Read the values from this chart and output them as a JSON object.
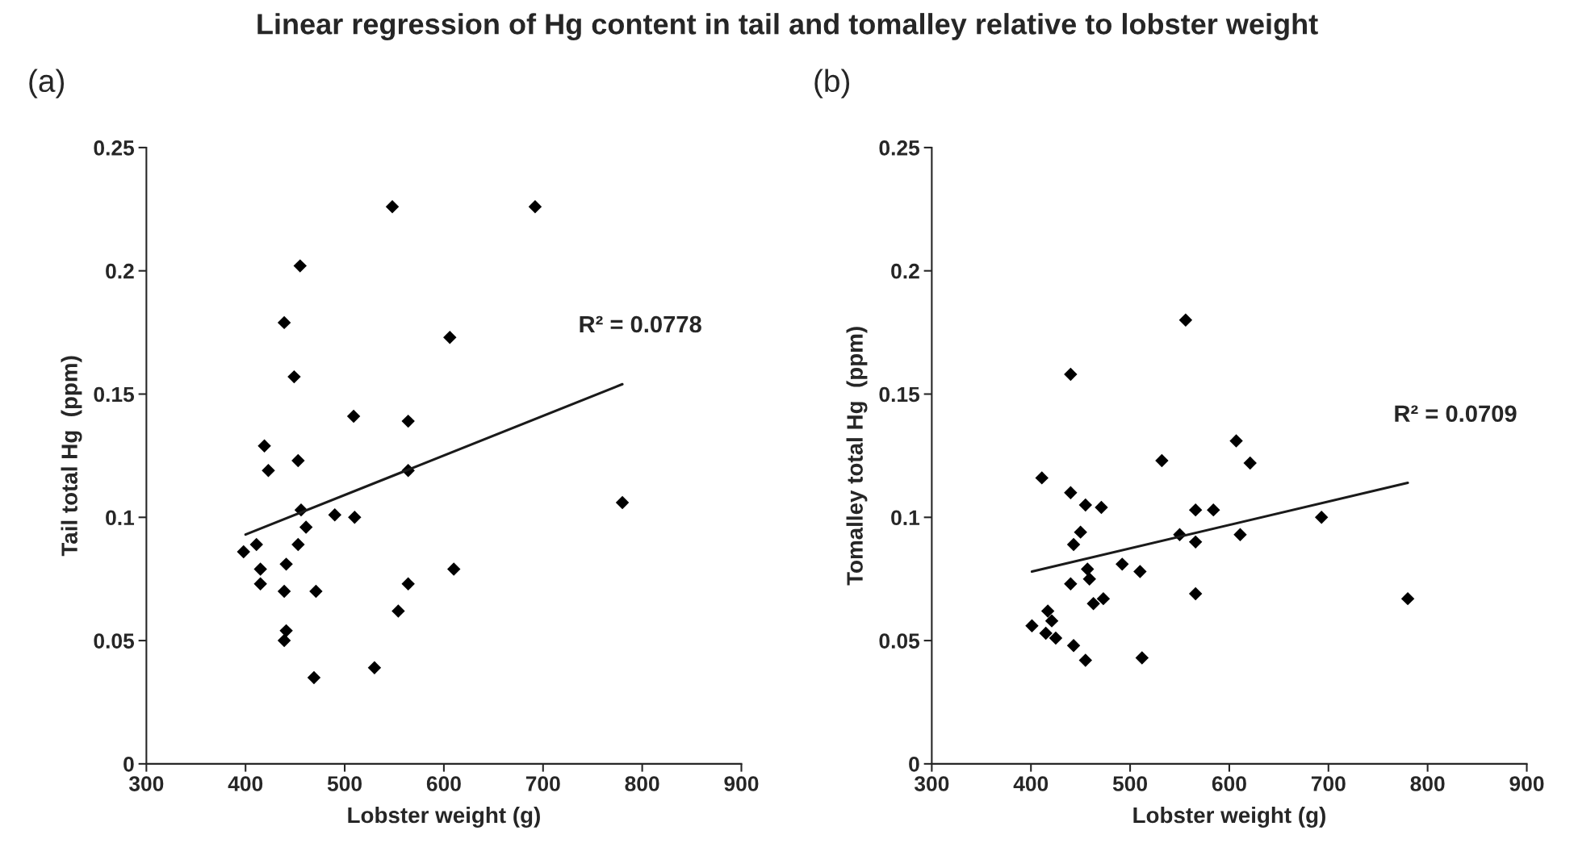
{
  "chart_data": [
    {
      "type": "scatter",
      "title": "Linear regression of Hg content in tail and tomalley relative to lobster weight",
      "subtitle": "(a)",
      "xlabel": "Lobster weight (g)",
      "ylabel": "Tail total Hg  (ppm)",
      "xlim": [
        300,
        900
      ],
      "xticks": [
        300,
        400,
        500,
        600,
        700,
        800,
        900
      ],
      "ylim": [
        0,
        0.25
      ],
      "yticks": [
        0,
        0.05,
        0.1,
        0.15,
        0.2,
        0.25
      ],
      "grid": false,
      "legend": false,
      "series": [
        {
          "color": "#000000",
          "marker": "diamond",
          "x": [
            548,
            692,
            455,
            439,
            606,
            449,
            509,
            564,
            419,
            453,
            423,
            564,
            780,
            456,
            490,
            510,
            461,
            411,
            453,
            398,
            441,
            415,
            610,
            415,
            564,
            439,
            471,
            554,
            441,
            439,
            530,
            469
          ],
          "values": [
            0.226,
            0.226,
            0.202,
            0.179,
            0.173,
            0.157,
            0.141,
            0.139,
            0.129,
            0.123,
            0.119,
            0.119,
            0.106,
            0.103,
            0.101,
            0.1,
            0.096,
            0.089,
            0.089,
            0.086,
            0.081,
            0.079,
            0.079,
            0.073,
            0.073,
            0.07,
            0.07,
            0.062,
            0.054,
            0.05,
            0.039,
            0.035
          ]
        },
        {
          "type": "line",
          "color": "#1a1a1a",
          "x": [
            400,
            780
          ],
          "values": [
            0.093,
            0.154
          ]
        }
      ],
      "annotations": [
        "R² = 0.0778"
      ]
    },
    {
      "type": "scatter",
      "subtitle": "(b)",
      "xlabel": "Lobster weight (g)",
      "ylabel": "Tomalley total Hg  (ppm)",
      "xlim": [
        300,
        900
      ],
      "xticks": [
        300,
        400,
        500,
        600,
        700,
        800,
        900
      ],
      "ylim": [
        0,
        0.25
      ],
      "yticks": [
        0,
        0.05,
        0.1,
        0.15,
        0.2,
        0.25
      ],
      "grid": false,
      "legend": false,
      "series": [
        {
          "color": "#000000",
          "marker": "diamond",
          "x": [
            556,
            440,
            607,
            532,
            621,
            411,
            440,
            455,
            471,
            566,
            584,
            693,
            450,
            550,
            611,
            566,
            443,
            492,
            457,
            510,
            459,
            440,
            566,
            473,
            780,
            463,
            417,
            421,
            401,
            415,
            425,
            443,
            455,
            512
          ],
          "values": [
            0.18,
            0.158,
            0.131,
            0.123,
            0.122,
            0.116,
            0.11,
            0.105,
            0.104,
            0.103,
            0.103,
            0.1,
            0.094,
            0.093,
            0.093,
            0.09,
            0.089,
            0.081,
            0.079,
            0.078,
            0.075,
            0.073,
            0.069,
            0.067,
            0.067,
            0.065,
            0.062,
            0.058,
            0.056,
            0.053,
            0.051,
            0.048,
            0.042,
            0.043
          ]
        },
        {
          "type": "line",
          "color": "#1a1a1a",
          "x": [
            401,
            780
          ],
          "values": [
            0.078,
            0.114
          ]
        }
      ],
      "annotations": [
        "R² = 0.0709"
      ]
    }
  ]
}
